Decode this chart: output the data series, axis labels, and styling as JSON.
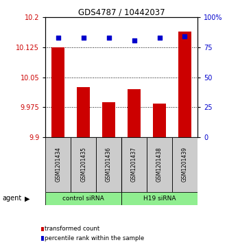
{
  "title": "GDS4787 / 10442037",
  "samples": [
    "GSM1201434",
    "GSM1201435",
    "GSM1201436",
    "GSM1201437",
    "GSM1201438",
    "GSM1201439"
  ],
  "bar_values": [
    10.125,
    10.025,
    9.988,
    10.02,
    9.983,
    10.165
  ],
  "percentile_values": [
    83,
    83,
    83,
    81,
    83,
    84
  ],
  "ylim_left": [
    9.9,
    10.2
  ],
  "ylim_right": [
    0,
    100
  ],
  "yticks_left": [
    9.9,
    9.975,
    10.05,
    10.125,
    10.2
  ],
  "ytick_labels_left": [
    "9.9",
    "9.975",
    "10.05",
    "10.125",
    "10.2"
  ],
  "yticks_right": [
    0,
    25,
    50,
    75,
    100
  ],
  "ytick_labels_right": [
    "0",
    "25",
    "50",
    "75",
    "100%"
  ],
  "groups": [
    {
      "label": "control siRNA",
      "start": 0,
      "end": 3,
      "color": "#90EE90"
    },
    {
      "label": "H19 siRNA",
      "start": 3,
      "end": 6,
      "color": "#90EE90"
    }
  ],
  "bar_color": "#CC0000",
  "dot_color": "#0000CC",
  "bar_width": 0.5,
  "sample_box_color": "#CCCCCC",
  "axis_label_color_left": "#CC0000",
  "axis_label_color_right": "#0000CC",
  "agent_label": "agent",
  "legend_items": [
    {
      "color": "#CC0000",
      "label": "transformed count"
    },
    {
      "color": "#0000CC",
      "label": "percentile rank within the sample"
    }
  ]
}
